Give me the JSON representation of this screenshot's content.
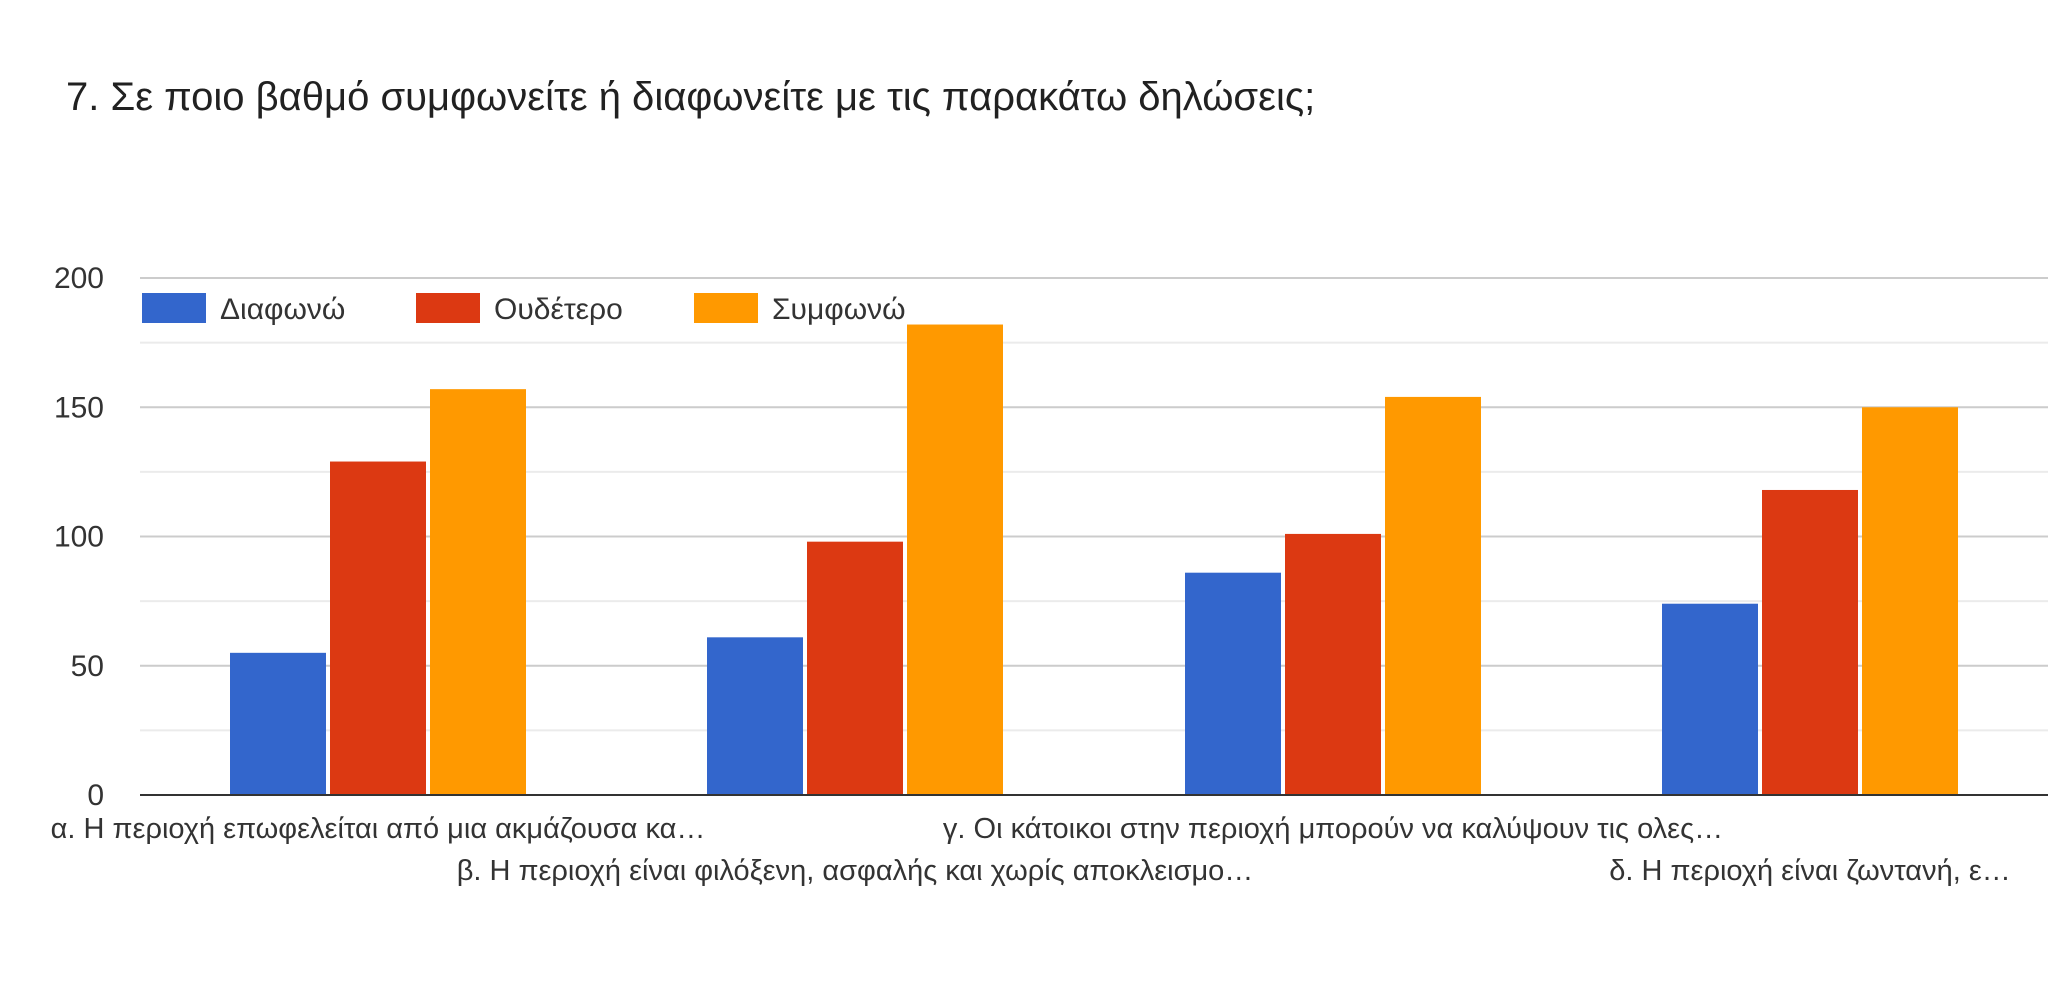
{
  "chart_data": {
    "type": "bar",
    "title": "7. Σε ποιο βαθμό συμφωνείτε ή διαφωνείτε με τις παρακάτω δηλώσεις;",
    "categories": [
      "α. Η περιοχή επωφελείται από μια ακμάζουσα κα…",
      "β. Η περιοχή είναι φιλόξενη, ασφαλής και χωρίς αποκλεισμο…",
      "γ. Οι κάτοικοι στην περιοχή μπορούν να καλύψουν τις ολες…",
      "δ. Η περιοχή είναι ζωντανή, ε…"
    ],
    "series": [
      {
        "name": "Διαφωνώ",
        "color": "#3366cc",
        "values": [
          55,
          61,
          86,
          74
        ]
      },
      {
        "name": "Ουδέτερο",
        "color": "#dc3912",
        "values": [
          129,
          98,
          101,
          118
        ]
      },
      {
        "name": "Συμφωνώ",
        "color": "#ff9900",
        "values": [
          157,
          182,
          154,
          150
        ]
      }
    ],
    "ylim": [
      0,
      200
    ],
    "yticks": [
      0,
      50,
      100,
      150,
      200
    ],
    "xlabel": "",
    "ylabel": "",
    "grid": true,
    "legend_position": "top-left",
    "colors": {
      "gridline": "#cccccc",
      "minor_gridline": "#ebebeb",
      "axis": "#333333"
    }
  }
}
